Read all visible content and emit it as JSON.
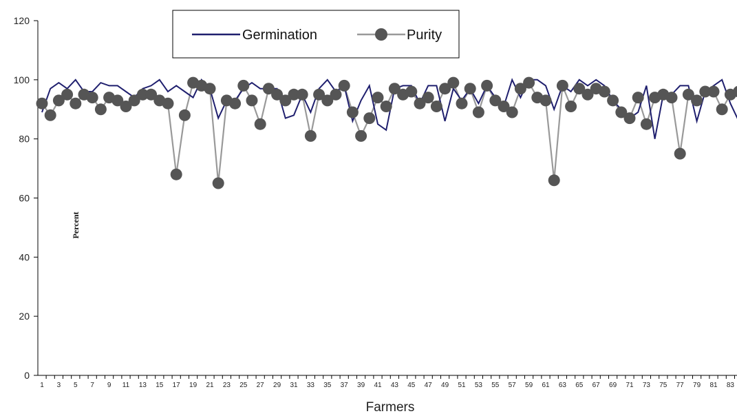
{
  "chart_data": {
    "type": "line",
    "xlabel": "Farmers",
    "ylabel": "Percent",
    "ylim": [
      0,
      120
    ],
    "yticks": [
      0,
      20,
      40,
      60,
      80,
      100,
      120
    ],
    "x_tick_labels": [
      "1",
      "3",
      "5",
      "7",
      "9",
      "11",
      "13",
      "15",
      "17",
      "19",
      "21",
      "23",
      "25",
      "27",
      "29",
      "31",
      "33",
      "35",
      "37",
      "39",
      "41",
      "43",
      "45",
      "47",
      "49",
      "51",
      "53",
      "55",
      "57",
      "59",
      "61",
      "63",
      "65",
      "67",
      "69",
      "71",
      "73",
      "75",
      "77",
      "79",
      "81",
      "83"
    ],
    "legend_position": "top-center",
    "grid": false,
    "x": [
      1,
      2,
      3,
      4,
      5,
      6,
      7,
      8,
      9,
      10,
      11,
      12,
      13,
      14,
      15,
      16,
      17,
      18,
      19,
      20,
      21,
      22,
      23,
      24,
      25,
      26,
      27,
      28,
      29,
      30,
      31,
      32,
      33,
      34,
      35,
      36,
      37,
      38,
      39,
      40,
      41,
      42,
      43,
      44,
      45,
      46,
      47,
      48,
      49,
      50,
      51,
      52,
      53,
      54,
      55,
      56,
      57,
      58,
      59,
      60,
      61,
      62,
      63,
      64,
      65,
      66,
      67,
      68,
      69,
      70,
      71,
      72,
      73,
      74,
      75,
      76,
      77,
      78,
      79,
      80,
      81,
      82,
      83,
      84
    ],
    "series": [
      {
        "name": "Germination",
        "color": "#1f1f6e",
        "marker": "none",
        "values": [
          89,
          97,
          99,
          97,
          100,
          96,
          96,
          99,
          98,
          98,
          96,
          94,
          97,
          98,
          100,
          96,
          98,
          96,
          94,
          100,
          97,
          87,
          93,
          93,
          97,
          99,
          97,
          97,
          97,
          87,
          88,
          95,
          89,
          97,
          100,
          96,
          98,
          86,
          93,
          98,
          85,
          83,
          97,
          98,
          98,
          92,
          98,
          98,
          86,
          97,
          93,
          97,
          92,
          98,
          94,
          91,
          100,
          94,
          100,
          100,
          98,
          90,
          98,
          96,
          100,
          98,
          100,
          98,
          93,
          90,
          87,
          89,
          98,
          80,
          95,
          95,
          98,
          98,
          86,
          96,
          98,
          100,
          92,
          86
        ],
        "note": "values aligned with x 1..84"
      },
      {
        "name": "Purity",
        "color": "#999999",
        "marker": "circle",
        "marker_color": "#555555",
        "values": [
          92,
          88,
          93,
          95,
          92,
          95,
          94,
          90,
          94,
          93,
          91,
          93,
          95,
          95,
          93,
          92,
          68,
          88,
          99,
          98,
          97,
          65,
          93,
          92,
          98,
          93,
          85,
          97,
          95,
          93,
          95,
          95,
          81,
          95,
          93,
          95,
          98,
          89,
          81,
          87,
          94,
          91,
          97,
          95,
          96,
          92,
          94,
          91,
          97,
          99,
          92,
          97,
          89,
          98,
          93,
          91,
          89,
          97,
          99,
          94,
          93,
          66,
          98,
          91,
          97,
          95,
          97,
          96,
          93,
          89,
          87,
          94,
          85,
          94,
          95,
          94,
          75,
          95,
          93,
          96,
          96,
          90,
          95,
          96
        ]
      }
    ]
  }
}
